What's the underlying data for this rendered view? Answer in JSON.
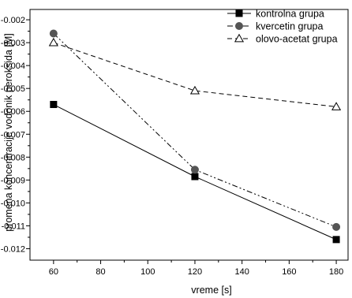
{
  "chart_data": {
    "type": "line",
    "xlabel": "vreme [s]",
    "ylabel": "promena koncentracije vodonik peroksida [M]",
    "x": [
      60,
      120,
      180
    ],
    "xlim": [
      50,
      185
    ],
    "ylim": [
      -0.0125,
      -0.00155
    ],
    "x_ticks": [
      "60",
      "80",
      "100",
      "120",
      "140",
      "160",
      "180"
    ],
    "y_ticks": [
      "-0.002",
      "-0.003",
      "-0.004",
      "-0.005",
      "-0.006",
      "-0.007",
      "-0.008",
      "-0.009",
      "-0.010",
      "-0.011",
      "-0.012"
    ],
    "legend_position": "top-right",
    "grid": false,
    "series": [
      {
        "name": "kontrolna grupa",
        "values": [
          -0.0057,
          -0.00885,
          -0.0116
        ],
        "marker": "filled-square",
        "line_style": "solid",
        "color": "#000000"
      },
      {
        "name": "kvercetin grupa",
        "values": [
          -0.0026,
          -0.00855,
          -0.01105
        ],
        "marker": "filled-circle",
        "line_style": "dash-dot-dot",
        "color": "#000000",
        "marker_color": "#555555"
      },
      {
        "name": "olovo-acetat grupa",
        "values": [
          -0.003,
          -0.0051,
          -0.0058
        ],
        "marker": "open-triangle",
        "line_style": "dashed",
        "color": "#000000"
      }
    ]
  }
}
